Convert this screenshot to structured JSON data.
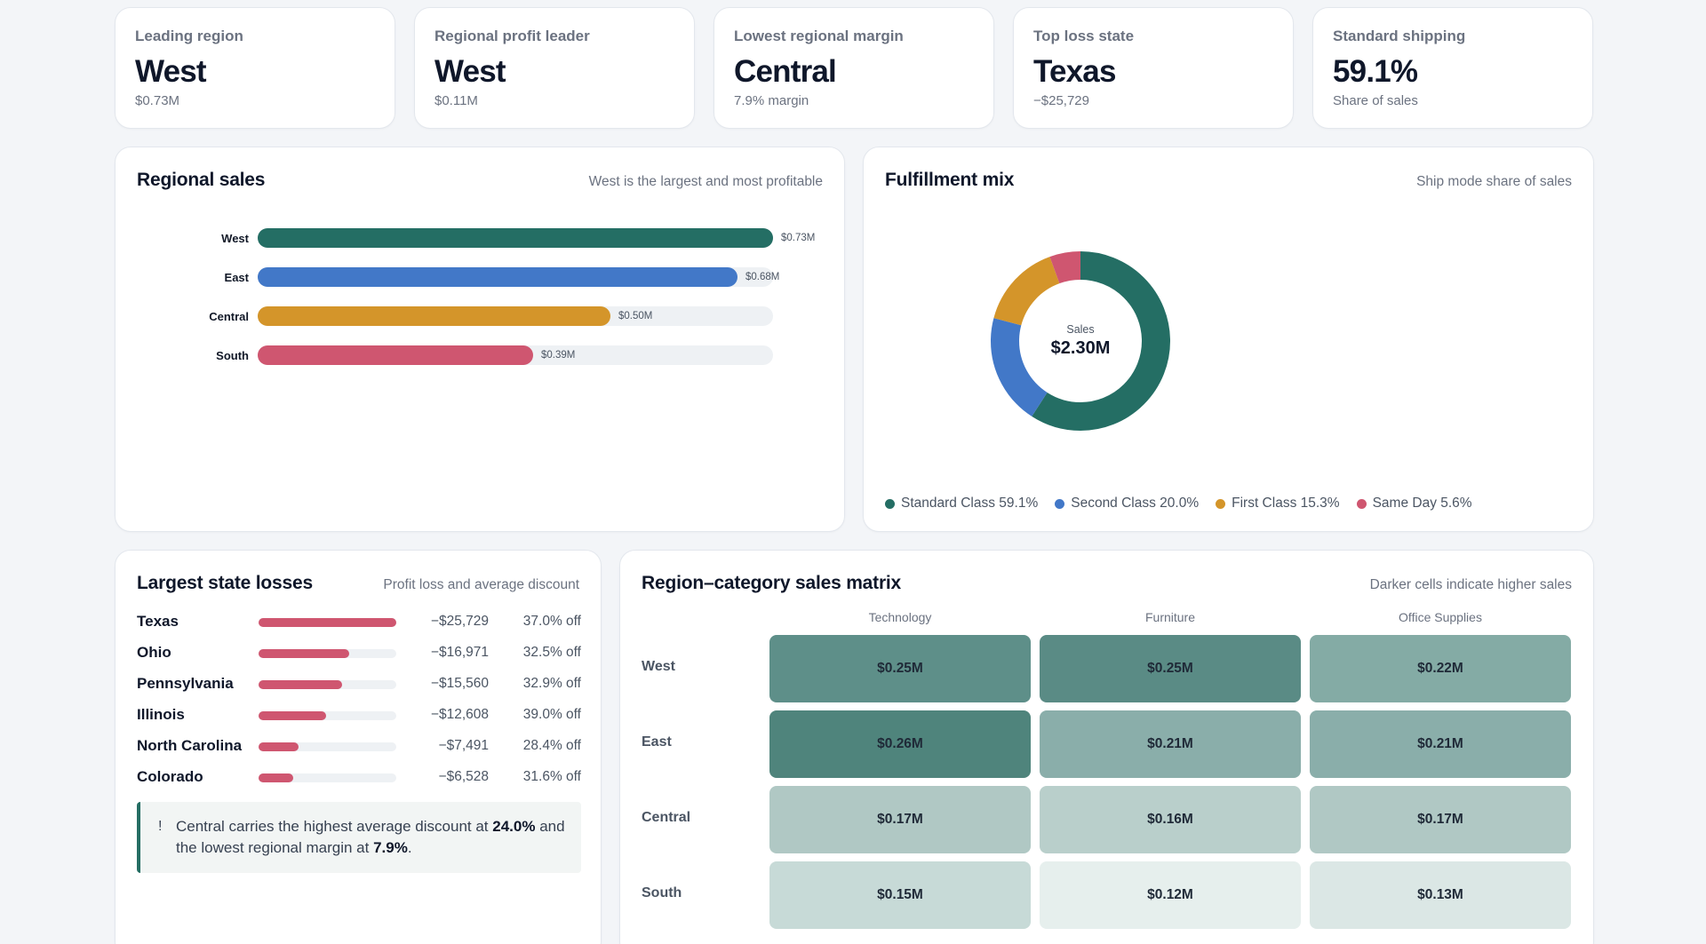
{
  "kpis": [
    {
      "label": "Leading region",
      "value": "West",
      "sub": "$0.73M"
    },
    {
      "label": "Regional profit leader",
      "value": "West",
      "sub": "$0.11M"
    },
    {
      "label": "Lowest regional margin",
      "value": "Central",
      "sub": "7.9% margin"
    },
    {
      "label": "Top loss state",
      "value": "Texas",
      "sub": "−$25,729"
    },
    {
      "label": "Standard shipping",
      "value": "59.1%",
      "sub": "Share of sales"
    }
  ],
  "regional_sales": {
    "title": "Regional sales",
    "note": "West is the largest and most profitable",
    "bars": [
      {
        "label": "West",
        "value": 0.73,
        "display": "$0.73M",
        "color": "#246e64"
      },
      {
        "label": "East",
        "value": 0.68,
        "display": "$0.68M",
        "color": "#4278c8"
      },
      {
        "label": "Central",
        "value": 0.5,
        "display": "$0.50M",
        "color": "#d4952a"
      },
      {
        "label": "South",
        "value": 0.39,
        "display": "$0.39M",
        "color": "#cf5670"
      }
    ],
    "max": 0.73
  },
  "fulfillment": {
    "title": "Fulfillment mix",
    "note": "Ship mode share of sales",
    "center_label": "Sales",
    "center_value": "$2.30M",
    "segments": [
      {
        "name": "Standard Class",
        "pct": 59.1,
        "display": "59.1%",
        "color": "#246e64"
      },
      {
        "name": "Second Class",
        "pct": 20.0,
        "display": "20.0%",
        "color": "#4278c8"
      },
      {
        "name": "First Class",
        "pct": 15.3,
        "display": "15.3%",
        "color": "#d4952a"
      },
      {
        "name": "Same Day",
        "pct": 5.6,
        "display": "5.6%",
        "color": "#cf5670"
      }
    ]
  },
  "losses": {
    "title": "Largest state losses",
    "note": "Profit loss and average discount",
    "rows": [
      {
        "state": "Texas",
        "loss": 25729,
        "amount": "−$25,729",
        "discount": "37.0% off"
      },
      {
        "state": "Ohio",
        "loss": 16971,
        "amount": "−$16,971",
        "discount": "32.5% off"
      },
      {
        "state": "Pennsylvania",
        "loss": 15560,
        "amount": "−$15,560",
        "discount": "32.9% off"
      },
      {
        "state": "Illinois",
        "loss": 12608,
        "amount": "−$12,608",
        "discount": "39.0% off"
      },
      {
        "state": "North Carolina",
        "loss": 7491,
        "amount": "−$7,491",
        "discount": "28.4% off"
      },
      {
        "state": "Colorado",
        "loss": 6528,
        "amount": "−$6,528",
        "discount": "31.6% off"
      }
    ],
    "callout": {
      "bang": "!",
      "text_1": "Central carries the highest average discount at ",
      "bold_1": "24.0%",
      "text_2": " and the lowest regional margin at ",
      "bold_2": "7.9%",
      "text_3": "."
    }
  },
  "matrix": {
    "title": "Region–category sales matrix",
    "note": "Darker cells indicate higher sales",
    "columns": [
      "Technology",
      "Furniture",
      "Office Supplies"
    ],
    "rows": [
      {
        "region": "West",
        "cells": [
          {
            "value": 0.25,
            "display": "$0.25M",
            "color": "#5e8f89"
          },
          {
            "value": 0.25,
            "display": "$0.25M",
            "color": "#5a8b85"
          },
          {
            "value": 0.22,
            "display": "$0.22M",
            "color": "#84aba5"
          }
        ]
      },
      {
        "region": "East",
        "cells": [
          {
            "value": 0.26,
            "display": "$0.26M",
            "color": "#4f847c"
          },
          {
            "value": 0.21,
            "display": "$0.21M",
            "color": "#8aaeaa"
          },
          {
            "value": 0.21,
            "display": "$0.21M",
            "color": "#8aaeaa"
          }
        ]
      },
      {
        "region": "Central",
        "cells": [
          {
            "value": 0.17,
            "display": "$0.17M",
            "color": "#b0c8c4"
          },
          {
            "value": 0.16,
            "display": "$0.16M",
            "color": "#b9cfcb"
          },
          {
            "value": 0.17,
            "display": "$0.17M",
            "color": "#b0c8c4"
          }
        ]
      },
      {
        "region": "South",
        "cells": [
          {
            "value": 0.15,
            "display": "$0.15M",
            "color": "#c7dad7"
          },
          {
            "value": 0.12,
            "display": "$0.12M",
            "color": "#e6efed"
          },
          {
            "value": 0.13,
            "display": "$0.13M",
            "color": "#dbe7e5"
          }
        ]
      }
    ]
  }
}
